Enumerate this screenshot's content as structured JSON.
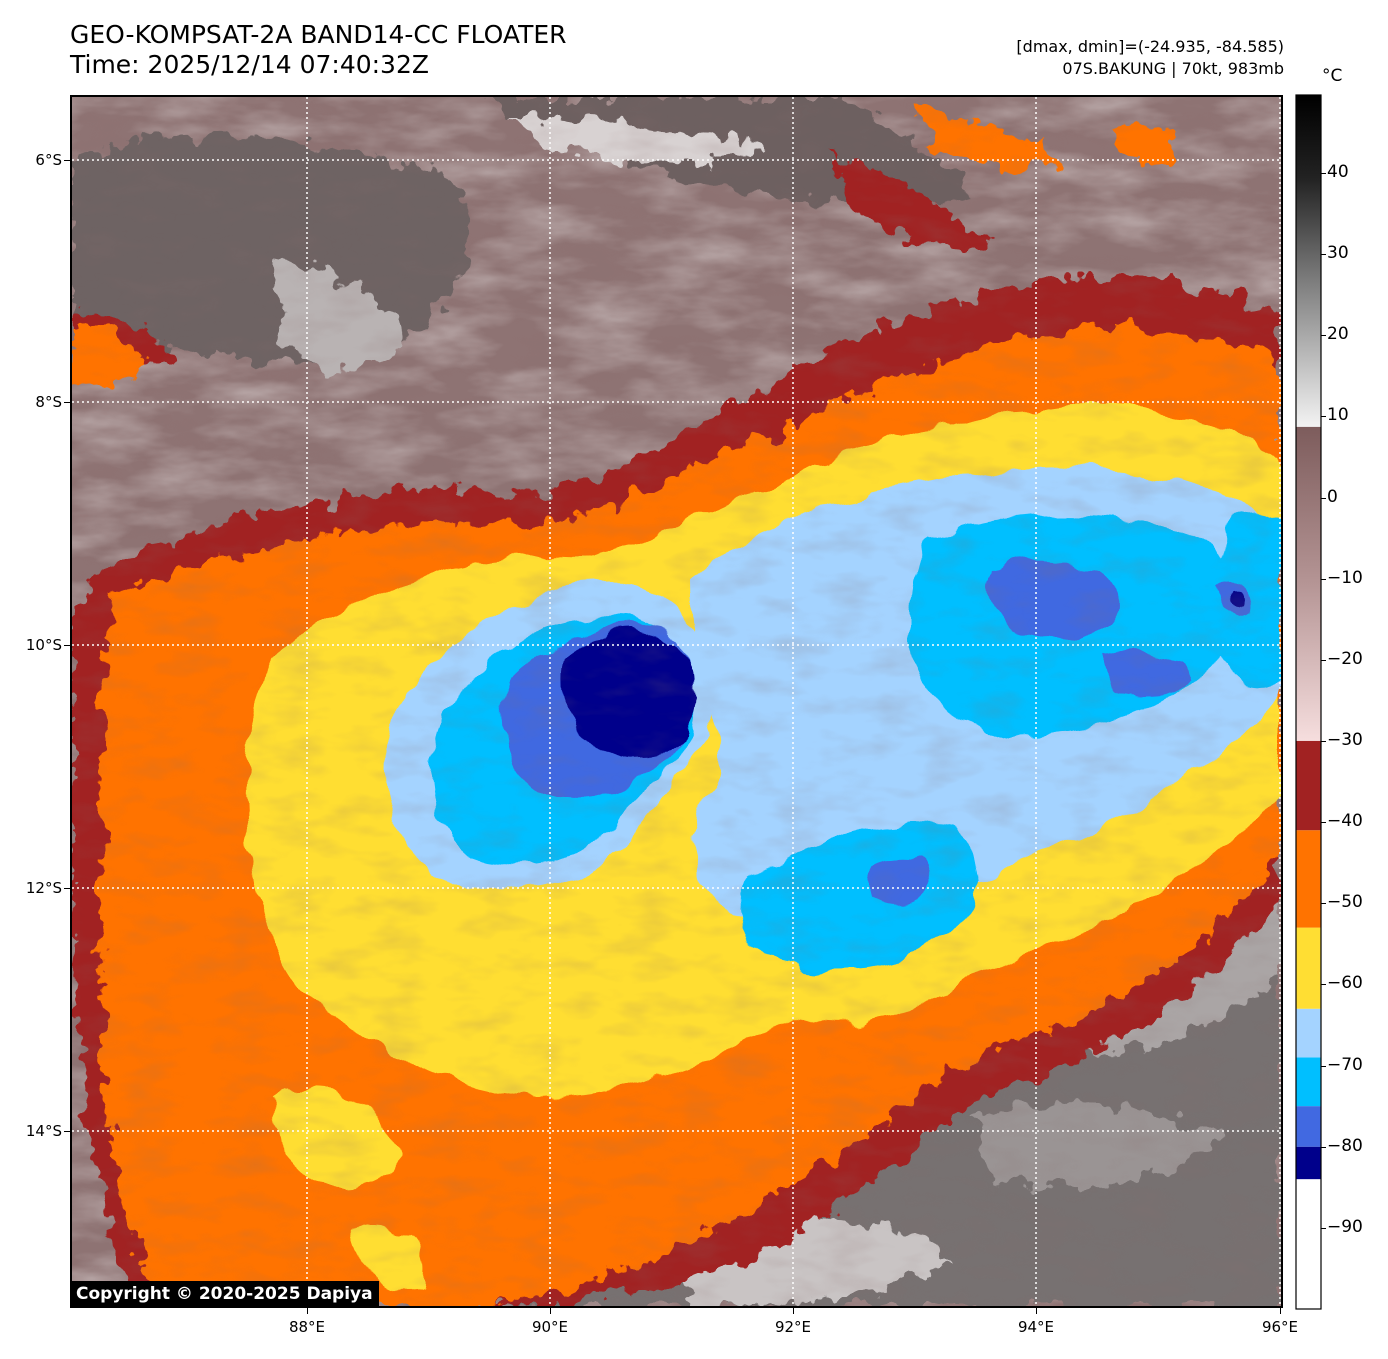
{
  "header": {
    "title_line1": "GEO-KOMPSAT-2A BAND14-CC FLOATER",
    "title_line2": "Time: 2025/12/14 07:40:32Z",
    "info_line1": "[dmax, dmin]=(-24.935, -84.585)",
    "info_line2": "07S.BAKUNG | 70kt, 983mb"
  },
  "map": {
    "lat_ticks": [
      "6°S",
      "8°S",
      "10°S",
      "12°S",
      "14°S"
    ],
    "lon_ticks": [
      "88°E",
      "90°E",
      "92°E",
      "94°E",
      "96°E"
    ],
    "copyright": "Copyright © 2020-2025 Dapiya"
  },
  "colorbar": {
    "unit": "°C",
    "tick_labels": [
      "40",
      "30",
      "20",
      "10",
      "0",
      "−10",
      "−20",
      "−30",
      "−40",
      "−50",
      "−60",
      "−70",
      "−80",
      "−90"
    ],
    "bands": [
      {
        "from": -100,
        "to": -84,
        "color": "#ffffff"
      },
      {
        "from": -84,
        "to": -80,
        "color": "#00008b"
      },
      {
        "from": -80,
        "to": -75,
        "color": "#4169e1"
      },
      {
        "from": -75,
        "to": -69,
        "color": "#00bfff"
      },
      {
        "from": -69,
        "to": -63,
        "color": "#a4d3ff"
      },
      {
        "from": -63,
        "to": -53,
        "color": "#ffde33"
      },
      {
        "from": -53,
        "to": -41,
        "color": "#ff7300"
      },
      {
        "from": -41,
        "to": -30,
        "color": "#a12222"
      }
    ]
  }
}
